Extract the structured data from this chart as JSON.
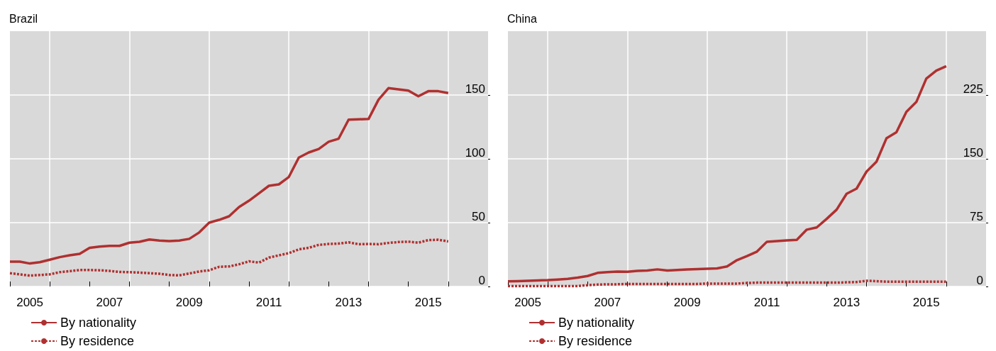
{
  "chart_data": [
    {
      "type": "line",
      "title": "Brazil",
      "x": [
        2005,
        2005.25,
        2005.5,
        2005.75,
        2006,
        2006.25,
        2006.5,
        2006.75,
        2007,
        2007.25,
        2007.5,
        2007.75,
        2008,
        2008.25,
        2008.5,
        2008.75,
        2009,
        2009.25,
        2009.5,
        2009.75,
        2010,
        2010.25,
        2010.5,
        2010.75,
        2011,
        2011.25,
        2011.5,
        2011.75,
        2012,
        2012.25,
        2012.5,
        2012.75,
        2013,
        2013.25,
        2013.5,
        2013.75,
        2014,
        2014.25,
        2014.5,
        2014.75,
        2015,
        2015.25,
        2015.5,
        2015.75,
        2016
      ],
      "series": [
        {
          "name": "By nationality",
          "color": "#b03030",
          "line_style": "solid",
          "values": [
            19.4,
            19.4,
            18,
            19,
            21,
            23,
            24.4,
            25.6,
            30.3,
            31.3,
            31.8,
            31.8,
            34.3,
            35,
            36.8,
            36,
            35.6,
            36,
            37.3,
            42.3,
            50,
            52.2,
            55,
            62.2,
            67.2,
            73,
            78.9,
            80,
            85.8,
            101,
            105,
            107.7,
            113.4,
            115.8,
            130.7,
            131,
            131.2,
            146.3,
            155.4,
            154.5,
            153.5,
            149,
            153,
            153,
            151.5
          ]
        },
        {
          "name": "By residence",
          "color": "#b03030",
          "line_style": "dotted",
          "values": [
            10.4,
            9.5,
            8.5,
            9,
            9.5,
            11.2,
            12,
            12.9,
            12.9,
            12.7,
            12.2,
            11.4,
            11.2,
            10.9,
            10.4,
            10,
            9,
            8.7,
            10.2,
            11.7,
            12.7,
            15.4,
            15.7,
            17.4,
            19.7,
            18.7,
            22.6,
            24.4,
            26.1,
            29.1,
            30.3,
            32.6,
            33.3,
            33.6,
            34.6,
            33.1,
            33.3,
            33.1,
            34.1,
            34.8,
            35.1,
            34.3,
            36.3,
            36.6,
            35.3
          ]
        }
      ],
      "xlim": [
        2005,
        2017
      ],
      "xticks": [
        {
          "value": 2005.5,
          "label": "2005"
        },
        {
          "value": 2007.5,
          "label": "2007"
        },
        {
          "value": 2009.5,
          "label": "2009"
        },
        {
          "value": 2011.5,
          "label": "2011"
        },
        {
          "value": 2013.5,
          "label": "2013"
        },
        {
          "value": 2015.5,
          "label": "2015"
        },
        {
          "value": 2005,
          "label": null
        },
        {
          "value": 2006,
          "label": null
        },
        {
          "value": 2007,
          "label": null
        },
        {
          "value": 2008,
          "label": null
        },
        {
          "value": 2009,
          "label": null
        },
        {
          "value": 2010,
          "label": null
        },
        {
          "value": 2011,
          "label": null
        },
        {
          "value": 2012,
          "label": null
        },
        {
          "value": 2013,
          "label": null
        },
        {
          "value": 2014,
          "label": null
        },
        {
          "value": 2015,
          "label": null
        },
        {
          "value": 2016,
          "label": null
        }
      ],
      "ylim": [
        0,
        200
      ],
      "yticks": [
        0,
        50,
        100,
        150
      ],
      "grid": true,
      "legend": "bottom left"
    },
    {
      "type": "line",
      "title": "China",
      "x": [
        2005,
        2005.25,
        2005.5,
        2005.75,
        2006,
        2006.25,
        2006.5,
        2006.75,
        2007,
        2007.25,
        2007.5,
        2007.75,
        2008,
        2008.25,
        2008.5,
        2008.75,
        2009,
        2009.25,
        2009.5,
        2009.75,
        2010,
        2010.25,
        2010.5,
        2010.75,
        2011,
        2011.25,
        2011.5,
        2011.75,
        2012,
        2012.25,
        2012.5,
        2012.75,
        2013,
        2013.25,
        2013.5,
        2013.75,
        2014,
        2014.25,
        2014.5,
        2014.75,
        2015,
        2015.25,
        2015.5,
        2015.75,
        2016
      ],
      "series": [
        {
          "name": "By nationality",
          "color": "#b03030",
          "line_style": "solid",
          "values": [
            6,
            6.3,
            6.7,
            7.1,
            7.5,
            8.2,
            9,
            10.4,
            12.3,
            16,
            16.8,
            17.5,
            17.2,
            18.3,
            18.7,
            20.1,
            18.7,
            19.4,
            20.1,
            20.5,
            20.9,
            21.3,
            23.5,
            31,
            35.8,
            41,
            52.6,
            53.4,
            54.1,
            54.8,
            66.8,
            69.4,
            79.5,
            90.3,
            109,
            115,
            135,
            146.7,
            174.1,
            181.2,
            205.3,
            216.8,
            244.3,
            253.6,
            258.8
          ]
        },
        {
          "name": "By residence",
          "color": "#b03030",
          "line_style": "dotted",
          "values": [
            0.5,
            0.5,
            0.5,
            0.5,
            0.5,
            0.5,
            0.5,
            0.5,
            1.5,
            2.2,
            2.6,
            2.6,
            3,
            3,
            3,
            3,
            3,
            3,
            3,
            3,
            3.4,
            3.4,
            3.4,
            3.4,
            4.1,
            4.5,
            4.5,
            4.5,
            4.5,
            4.5,
            4.5,
            4.5,
            4.5,
            4.5,
            4.9,
            5.2,
            6.7,
            6.3,
            5.6,
            5.6,
            5.6,
            5.6,
            5.6,
            5.6,
            5.6
          ]
        }
      ],
      "xlim": [
        2005,
        2017
      ],
      "xticks": [
        {
          "value": 2005.5,
          "label": "2005"
        },
        {
          "value": 2007.5,
          "label": "2007"
        },
        {
          "value": 2009.5,
          "label": "2009"
        },
        {
          "value": 2011.5,
          "label": "2011"
        },
        {
          "value": 2013.5,
          "label": "2013"
        },
        {
          "value": 2015.5,
          "label": "2015"
        },
        {
          "value": 2005,
          "label": null
        },
        {
          "value": 2006,
          "label": null
        },
        {
          "value": 2007,
          "label": null
        },
        {
          "value": 2008,
          "label": null
        },
        {
          "value": 2009,
          "label": null
        },
        {
          "value": 2010,
          "label": null
        },
        {
          "value": 2011,
          "label": null
        },
        {
          "value": 2012,
          "label": null
        },
        {
          "value": 2013,
          "label": null
        },
        {
          "value": 2014,
          "label": null
        },
        {
          "value": 2015,
          "label": null
        },
        {
          "value": 2016,
          "label": null
        }
      ],
      "ylim": [
        0,
        300
      ],
      "yticks": [
        0,
        75,
        150,
        225
      ],
      "grid": true,
      "legend": "bottom left"
    }
  ]
}
